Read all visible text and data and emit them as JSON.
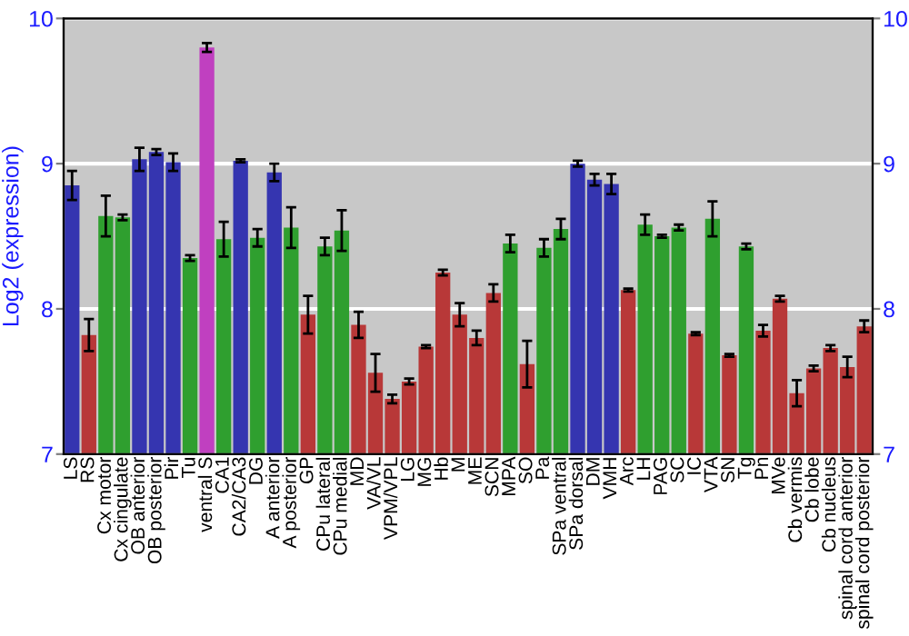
{
  "chart_data": {
    "type": "bar",
    "ylabel": "Log2 (expression)",
    "categories": [
      "LS",
      "RS",
      "Cx motor",
      "Cx cingulate",
      "OB anterior",
      "OB posterior",
      "Pir",
      "Tu",
      "ventral S",
      "CA1",
      "CA2/CA3",
      "DG",
      "A anterior",
      "A posterior",
      "GP",
      "CPu lateral",
      "CPu medial",
      "MD",
      "VA/VL",
      "VPM/VPL",
      "LG",
      "MG",
      "Hb",
      "M",
      "ME",
      "SCN",
      "MPA",
      "SO",
      "Pa",
      "SPa ventral",
      "SPa dorsal",
      "DM",
      "VMH",
      "Arc",
      "LH",
      "PAG",
      "SC",
      "IC",
      "VTA",
      "SN",
      "Tg",
      "Pn",
      "MVe",
      "Cb vermis",
      "Cb lobe",
      "Cb nucleus",
      "spinal cord anterior",
      "spinal cord posterior"
    ],
    "values": [
      8.85,
      7.82,
      8.64,
      8.63,
      9.03,
      9.08,
      9.01,
      8.35,
      9.8,
      8.48,
      9.02,
      8.49,
      8.94,
      8.56,
      7.96,
      8.43,
      8.54,
      7.89,
      7.56,
      7.38,
      7.5,
      7.74,
      8.25,
      7.96,
      7.8,
      8.11,
      8.45,
      7.62,
      8.42,
      8.55,
      9.0,
      8.89,
      8.86,
      8.13,
      8.58,
      8.5,
      8.56,
      7.83,
      8.62,
      7.68,
      8.43,
      7.85,
      8.07,
      7.42,
      7.59,
      7.73,
      7.6,
      7.88
    ],
    "errors": [
      0.1,
      0.11,
      0.14,
      0.02,
      0.08,
      0.02,
      0.06,
      0.02,
      0.03,
      0.12,
      0.01,
      0.06,
      0.06,
      0.14,
      0.13,
      0.06,
      0.14,
      0.09,
      0.13,
      0.03,
      0.02,
      0.01,
      0.02,
      0.08,
      0.05,
      0.06,
      0.06,
      0.16,
      0.06,
      0.07,
      0.02,
      0.04,
      0.07,
      0.01,
      0.07,
      0.01,
      0.02,
      0.01,
      0.12,
      0.01,
      0.02,
      0.04,
      0.02,
      0.09,
      0.02,
      0.02,
      0.07,
      0.04
    ],
    "colors": [
      "#3535b0",
      "#b83838",
      "#2f9f2f",
      "#2f9f2f",
      "#3535b0",
      "#3535b0",
      "#3535b0",
      "#2f9f2f",
      "#c040c0",
      "#2f9f2f",
      "#3535b0",
      "#2f9f2f",
      "#3535b0",
      "#2f9f2f",
      "#b83838",
      "#2f9f2f",
      "#2f9f2f",
      "#b83838",
      "#b83838",
      "#b83838",
      "#b83838",
      "#b83838",
      "#b83838",
      "#b83838",
      "#b83838",
      "#b83838",
      "#2f9f2f",
      "#b83838",
      "#2f9f2f",
      "#2f9f2f",
      "#3535b0",
      "#3535b0",
      "#3535b0",
      "#b83838",
      "#2f9f2f",
      "#2f9f2f",
      "#2f9f2f",
      "#b83838",
      "#2f9f2f",
      "#b83838",
      "#2f9f2f",
      "#b83838",
      "#b83838",
      "#b83838",
      "#b83838",
      "#b83838",
      "#b83838",
      "#b83838"
    ],
    "ylim": [
      7,
      10
    ],
    "yticks": [
      7,
      8,
      9,
      10
    ],
    "y2lim": [
      7,
      10
    ],
    "y2ticks": [
      7,
      8,
      9,
      10
    ],
    "grid": "y"
  }
}
